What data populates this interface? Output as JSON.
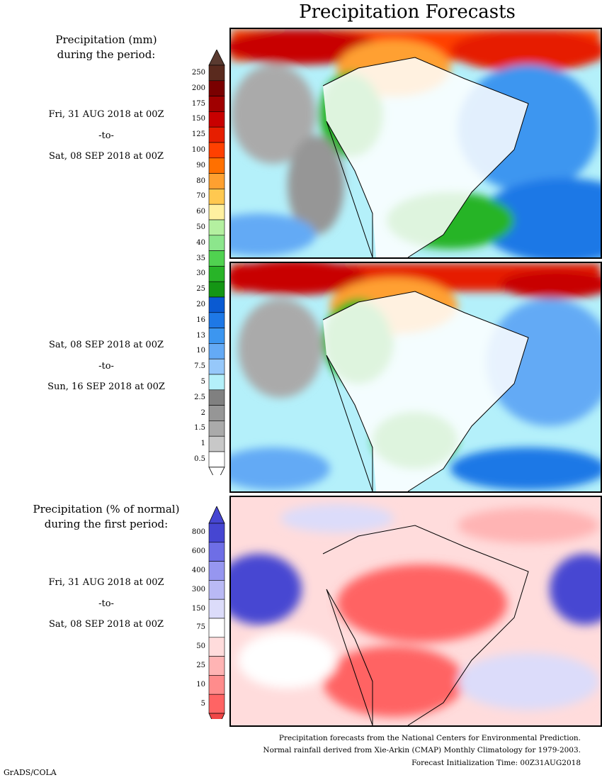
{
  "title": "Precipitation Forecasts",
  "panel1": {
    "heading_line1": "Precipitation (mm)",
    "heading_line2": "during the period:",
    "from": "Fri, 31 AUG 2018 at 00Z",
    "to_word": "-to-",
    "until": "Sat, 08 SEP 2018 at 00Z"
  },
  "panel2": {
    "from": "Sat, 08 SEP 2018 at 00Z",
    "to_word": "-to-",
    "until": "Sun, 16 SEP 2018 at 00Z"
  },
  "panel3": {
    "heading_line1": "Precipitation (% of normal)",
    "heading_line2": "during the first period:",
    "from": "Fri, 31 AUG 2018 at 00Z",
    "to_word": "-to-",
    "until": "Sat, 08 SEP 2018 at 00Z"
  },
  "mm_scale": {
    "labels": [
      "250",
      "200",
      "175",
      "150",
      "125",
      "100",
      "90",
      "80",
      "70",
      "60",
      "50",
      "40",
      "35",
      "30",
      "25",
      "20",
      "16",
      "13",
      "10",
      "7.5",
      "5",
      "2.5",
      "2",
      "1.5",
      "1",
      "0.5"
    ],
    "colors": [
      "#5a2a1e",
      "#7a0000",
      "#a00000",
      "#c80000",
      "#e61e00",
      "#ff4000",
      "#ff7000",
      "#ffa030",
      "#ffc850",
      "#fff0a0",
      "#b4f0a0",
      "#8ce68c",
      "#50d250",
      "#28b428",
      "#149614",
      "#0a5ad2",
      "#1e78e6",
      "#3c96f0",
      "#64aaf5",
      "#96c8fa",
      "#b4f0fa",
      "#808080",
      "#969696",
      "#aaaaaa",
      "#c8c8c8",
      "#ffffff"
    ],
    "top_arrow_color": "#5a3a30",
    "bottom_arrow_color": "#ffffff"
  },
  "pct_scale": {
    "labels": [
      "800",
      "600",
      "400",
      "300",
      "150",
      "75",
      "50",
      "25",
      "10",
      "5"
    ],
    "colors": [
      "#4646d2",
      "#6e6ee6",
      "#9696f0",
      "#b9b9f5",
      "#dcdcfa",
      "#ffffff",
      "#ffdcdc",
      "#ffb4b4",
      "#ff8c8c",
      "#ff6464"
    ],
    "top_arrow_color": "#4646d2",
    "bottom_arrow_color": "#f04646"
  },
  "notes": {
    "line1": "Precipitation forecasts from the National Centers for Environmental Prediction.",
    "line2": "Normal rainfall derived from Xie-Arkin (CMAP) Monthly Climatology for 1979-2003.",
    "line3": "Forecast Initialization Time: 00Z31AUG2018"
  },
  "credit": "GrADS/COLA"
}
